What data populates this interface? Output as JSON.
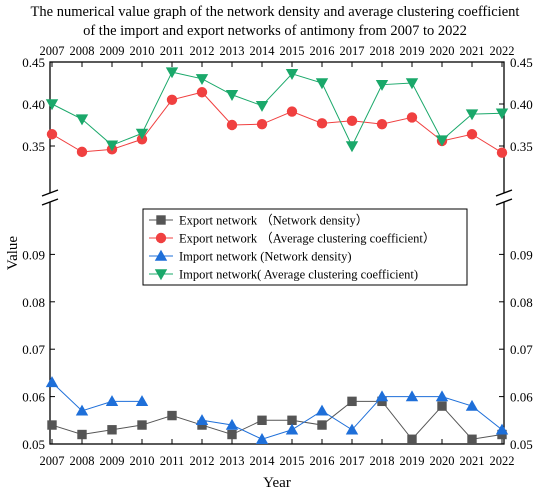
{
  "chart_data": {
    "type": "line",
    "title_lines": [
      "The numerical value graph of the network density and average clustering coefficient",
      "of the import and export networks of antimony from 2007 to 2022"
    ],
    "xlabel": "Year",
    "ylabel": "Value",
    "x": [
      "2007",
      "2008",
      "2009",
      "2010",
      "2011",
      "2012",
      "2013",
      "2014",
      "2015",
      "2016",
      "2017",
      "2018",
      "2019",
      "2020",
      "2021",
      "2022"
    ],
    "axis_break": true,
    "ylim_upper": [
      0.3,
      0.45
    ],
    "ylim_lower": [
      0.05,
      0.1
    ],
    "yticks_upper": [
      "0.35",
      "0.40",
      "0.45"
    ],
    "yticks_lower": [
      "0.05",
      "0.06",
      "0.07",
      "0.08",
      "0.09"
    ],
    "legend_position": "center",
    "series": [
      {
        "name": "Export network （Network density）",
        "marker": "square",
        "color": "#555555",
        "values": [
          0.054,
          0.052,
          0.053,
          0.054,
          0.056,
          0.054,
          0.052,
          0.055,
          0.055,
          0.054,
          0.059,
          0.059,
          0.051,
          0.058,
          0.051,
          0.052
        ]
      },
      {
        "name": "Export network （Average clustering coefficient）",
        "marker": "circle",
        "color": "#f04040",
        "values": [
          0.364,
          0.343,
          0.346,
          0.358,
          0.405,
          0.414,
          0.375,
          0.376,
          0.391,
          0.377,
          0.38,
          0.376,
          0.384,
          0.356,
          0.364,
          0.342
        ]
      },
      {
        "name": "Import network (Network density)",
        "marker": "triangle-up",
        "color": "#1e6fd9",
        "values": [
          0.063,
          0.057,
          0.059,
          0.059,
          null,
          0.055,
          0.054,
          0.051,
          0.053,
          0.057,
          0.053,
          0.06,
          0.06,
          0.06,
          0.058,
          0.053
        ]
      },
      {
        "name": "Import network( Average clustering coefficient)",
        "marker": "triangle-down",
        "color": "#1aa86a",
        "values": [
          0.4,
          0.382,
          0.351,
          0.365,
          0.438,
          0.43,
          0.411,
          0.398,
          0.436,
          0.425,
          0.35,
          0.423,
          0.425,
          0.357,
          0.388,
          0.389
        ]
      }
    ]
  }
}
